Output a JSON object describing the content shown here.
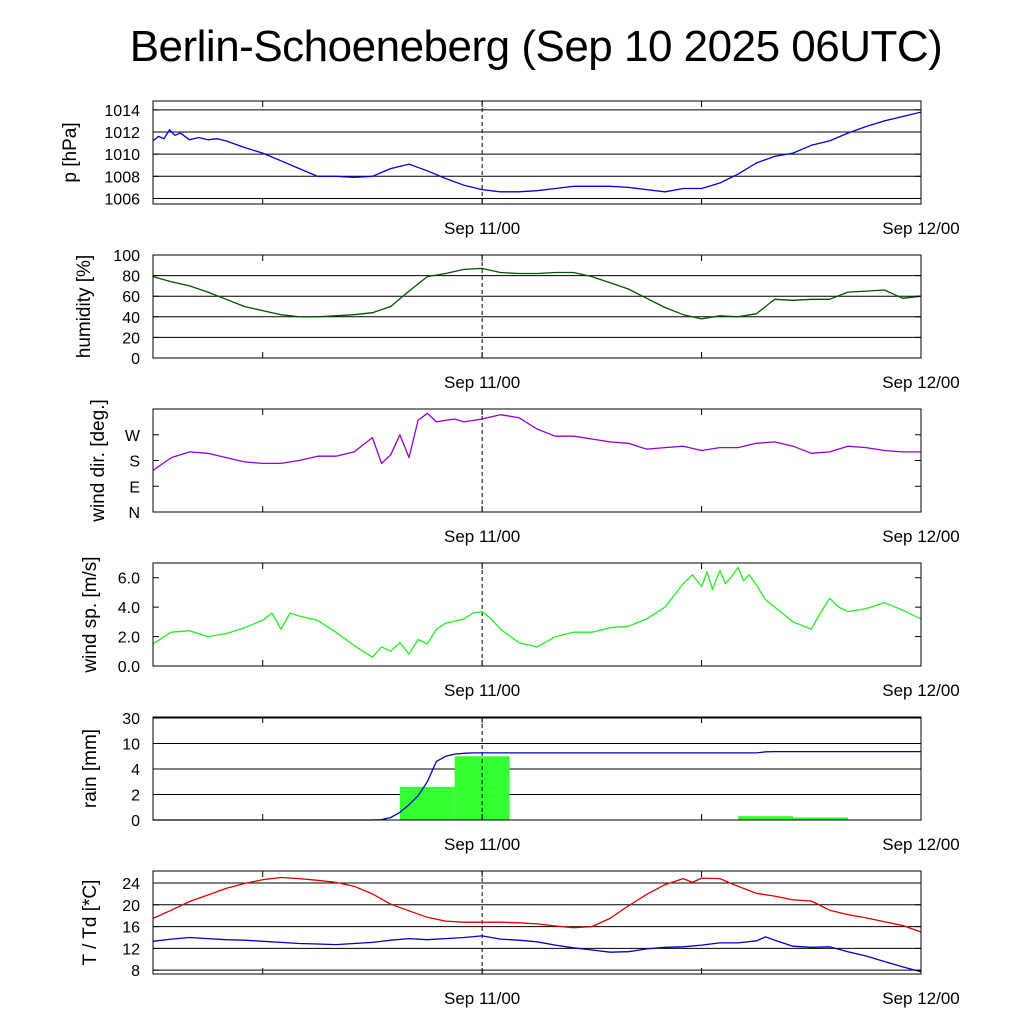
{
  "title": "Berlin-Schoeneberg (Sep 10 2025 06UTC)",
  "x_axis": {
    "start": "Sep 10 06UTC",
    "end": "Sep 12 00UTC",
    "span_hours": 42,
    "tick_labels": [
      {
        "hour": 18,
        "label": "Sep 11/00"
      },
      {
        "hour": 42,
        "label": "Sep 12/00"
      }
    ],
    "minor_ticks_hours": [
      6,
      18,
      30,
      42
    ],
    "dashed_line_hour": 18
  },
  "colors": {
    "pressure": "#0000dd",
    "humidity": "#005500",
    "wind_dir": "#9400d3",
    "wind_speed": "#22ee22",
    "rain_bars": "#33ff33",
    "rain_accum": "#0000cc",
    "temperature": "#dd0000",
    "dewpoint": "#0000cc"
  },
  "chart_data": [
    {
      "type": "line",
      "ylabel": "p [hPa]",
      "ylim": [
        1005.5,
        1014.8
      ],
      "yticks": [
        1006,
        1008,
        1010,
        1012,
        1014
      ],
      "grid": true,
      "series": [
        {
          "color_key": "pressure",
          "x": [
            0,
            0.3,
            0.6,
            0.9,
            1.2,
            1.5,
            2,
            2.5,
            3,
            3.5,
            4,
            5,
            6,
            7,
            8,
            9,
            10,
            11,
            12,
            13,
            14,
            15,
            16,
            17,
            18,
            19,
            20,
            21,
            22,
            23,
            24,
            25,
            26,
            27,
            28,
            29,
            30,
            31,
            32,
            33,
            34,
            35,
            36,
            37,
            38,
            39,
            40,
            41,
            42
          ],
          "y": [
            1011.2,
            1011.6,
            1011.4,
            1012.2,
            1011.7,
            1011.9,
            1011.3,
            1011.5,
            1011.3,
            1011.4,
            1011.2,
            1010.6,
            1010.1,
            1009.4,
            1008.7,
            1008.0,
            1008.0,
            1007.9,
            1008.0,
            1008.7,
            1009.1,
            1008.5,
            1007.8,
            1007.2,
            1006.8,
            1006.6,
            1006.6,
            1006.7,
            1006.9,
            1007.1,
            1007.1,
            1007.1,
            1007.0,
            1006.8,
            1006.6,
            1006.9,
            1006.9,
            1007.4,
            1008.2,
            1009.2,
            1009.8,
            1010.1,
            1010.8,
            1011.2,
            1011.9,
            1012.5,
            1013.0,
            1013.4,
            1013.8
          ]
        }
      ]
    },
    {
      "type": "line",
      "ylabel": "humidity [%]",
      "ylim": [
        0,
        100
      ],
      "yticks": [
        0,
        20,
        40,
        60,
        80,
        100
      ],
      "grid": true,
      "series": [
        {
          "color_key": "humidity",
          "x": [
            0,
            1,
            2,
            3,
            4,
            5,
            6,
            7,
            8,
            9,
            10,
            11,
            12,
            13,
            14,
            15,
            16,
            17,
            18,
            19,
            20,
            21,
            22,
            23,
            24,
            25,
            26,
            27,
            28,
            29,
            30,
            31,
            32,
            33,
            34,
            35,
            36,
            37,
            38,
            39,
            40,
            41,
            42
          ],
          "y": [
            79,
            74,
            70,
            64,
            57,
            50,
            46,
            42,
            40,
            40,
            41,
            42,
            44,
            50,
            65,
            79,
            82,
            86,
            87,
            83,
            82,
            82,
            83,
            83,
            79,
            73,
            67,
            58,
            49,
            42,
            38,
            41,
            40,
            43,
            57,
            56,
            57,
            57,
            64,
            65,
            66,
            58,
            60
          ]
        }
      ]
    },
    {
      "type": "line",
      "ylabel": "wind dir. [deg.]",
      "ylim": [
        0,
        360
      ],
      "yticks": [
        0,
        90,
        180,
        270
      ],
      "ytick_labels": [
        "N",
        "E",
        "S",
        "W"
      ],
      "grid": false,
      "series": [
        {
          "color_key": "wind_dir",
          "x": [
            0,
            1,
            2,
            3,
            4,
            5,
            6,
            7,
            8,
            9,
            10,
            11,
            12,
            12.5,
            13,
            13.5,
            14,
            14.5,
            15,
            15.5,
            16,
            16.5,
            17,
            18,
            19,
            20,
            21,
            22,
            23,
            24,
            25,
            26,
            27,
            28,
            29,
            30,
            31,
            32,
            33,
            34,
            35,
            36,
            37,
            38,
            39,
            40,
            41,
            42
          ],
          "y": [
            145,
            190,
            210,
            205,
            190,
            175,
            170,
            170,
            180,
            195,
            195,
            210,
            260,
            170,
            200,
            270,
            190,
            320,
            345,
            315,
            320,
            325,
            315,
            325,
            340,
            330,
            290,
            265,
            265,
            255,
            245,
            240,
            220,
            225,
            230,
            215,
            225,
            225,
            240,
            245,
            230,
            205,
            210,
            230,
            225,
            215,
            210,
            210
          ]
        }
      ]
    },
    {
      "type": "line",
      "ylabel": "wind sp. [m/s]",
      "ylim": [
        0,
        7
      ],
      "yticks": [
        0.0,
        2.0,
        4.0,
        6.0
      ],
      "ytick_labels": [
        "0.0",
        "2.0",
        "4.0",
        "6.0"
      ],
      "grid": false,
      "series": [
        {
          "color_key": "wind_speed",
          "x": [
            0,
            1,
            2,
            3,
            4,
            5,
            6,
            6.5,
            7,
            7.5,
            8,
            9,
            10,
            11,
            11.5,
            12,
            12.5,
            13,
            13.5,
            14,
            14.5,
            15,
            15.5,
            16,
            17,
            17.5,
            18,
            18.5,
            19,
            20,
            21,
            22,
            23,
            24,
            25,
            26,
            27,
            28,
            29,
            29.5,
            30,
            30.3,
            30.6,
            31,
            31.3,
            31.6,
            32,
            32.3,
            32.6,
            33,
            33.5,
            34,
            35,
            36,
            36.5,
            37,
            37.5,
            38,
            39,
            40,
            41,
            42
          ],
          "y": [
            1.5,
            2.3,
            2.4,
            2.0,
            2.2,
            2.6,
            3.1,
            3.6,
            2.5,
            3.6,
            3.4,
            3.1,
            2.3,
            1.4,
            1.0,
            0.6,
            1.3,
            1.0,
            1.6,
            0.8,
            1.8,
            1.5,
            2.5,
            2.9,
            3.2,
            3.6,
            3.7,
            3.2,
            2.5,
            1.6,
            1.3,
            2.0,
            2.3,
            2.3,
            2.6,
            2.7,
            3.2,
            4.0,
            5.6,
            6.2,
            5.4,
            6.4,
            5.2,
            6.5,
            5.6,
            6.0,
            6.7,
            5.8,
            6.2,
            5.5,
            4.5,
            4.0,
            3.0,
            2.5,
            3.6,
            4.6,
            4.0,
            3.7,
            3.9,
            4.3,
            3.8,
            3.2
          ]
        }
      ]
    },
    {
      "type": "bar",
      "ylabel": "rain [mm]",
      "yticks": [
        0,
        2,
        4,
        10,
        30
      ],
      "ytick_labels": [
        "0",
        "2",
        "4",
        "10",
        "30"
      ],
      "grid": true,
      "bars": [
        {
          "x0": 13.5,
          "x1": 16.5,
          "value": 2.6
        },
        {
          "x0": 16.5,
          "x1": 19.5,
          "value": 7.0
        },
        {
          "x0": 32.0,
          "x1": 35.0,
          "value": 0.3
        },
        {
          "x0": 35.0,
          "x1": 38.0,
          "value": 0.2
        }
      ],
      "series": [
        {
          "name": "",
          "color_key": "rain_accum",
          "x": [
            0,
            12,
            12.5,
            13,
            13.5,
            14,
            14.5,
            15,
            15.5,
            16,
            16.5,
            17,
            17.5,
            18,
            20,
            25,
            30,
            33,
            33.5,
            34,
            35,
            40,
            42
          ],
          "y": [
            0,
            0,
            0.03,
            0.2,
            0.6,
            1.2,
            1.9,
            3.0,
            5.8,
            7.0,
            7.5,
            7.7,
            7.8,
            7.8,
            7.8,
            7.8,
            7.8,
            7.8,
            8.05,
            8.1,
            8.1,
            8.1,
            8.1
          ]
        }
      ]
    },
    {
      "type": "line",
      "ylabel": "T / Td [*C]",
      "ylim": [
        7.3,
        26.2
      ],
      "yticks": [
        8,
        12,
        16,
        20,
        24
      ],
      "grid": true,
      "series": [
        {
          "color_key": "temperature",
          "x": [
            0,
            1,
            2,
            3,
            4,
            5,
            6,
            7,
            8,
            9,
            10,
            11,
            12,
            13,
            14,
            15,
            16,
            17,
            18,
            19,
            20,
            21,
            22,
            23,
            24,
            25,
            26,
            27,
            28,
            29,
            29.5,
            30,
            31,
            32,
            33,
            34,
            35,
            36,
            37,
            38,
            39,
            40,
            41,
            42
          ],
          "y": [
            17.5,
            19.0,
            20.6,
            21.8,
            23.0,
            23.9,
            24.6,
            25.0,
            24.8,
            24.5,
            24.1,
            23.4,
            22.0,
            20.1,
            18.9,
            17.7,
            17.0,
            16.8,
            16.8,
            16.8,
            16.7,
            16.5,
            16.1,
            15.8,
            16.0,
            17.5,
            19.8,
            21.9,
            23.7,
            24.8,
            24.1,
            24.9,
            24.8,
            23.4,
            22.1,
            21.6,
            20.9,
            20.7,
            19.0,
            18.2,
            17.6,
            16.9,
            16.2,
            15.0
          ]
        },
        {
          "color_key": "dewpoint",
          "x": [
            0,
            1,
            2,
            3,
            4,
            5,
            6,
            7,
            8,
            9,
            10,
            11,
            12,
            13,
            14,
            15,
            16,
            17,
            18,
            19,
            20,
            21,
            22,
            23,
            24,
            25,
            26,
            27,
            28,
            29,
            30,
            31,
            32,
            33,
            33.5,
            34,
            35,
            36,
            37,
            38,
            39,
            40,
            41,
            42
          ],
          "y": [
            13.3,
            13.7,
            14.0,
            13.8,
            13.6,
            13.5,
            13.3,
            13.1,
            12.9,
            12.8,
            12.7,
            12.9,
            13.1,
            13.5,
            13.8,
            13.6,
            13.8,
            14.0,
            14.3,
            13.7,
            13.5,
            13.2,
            12.6,
            12.1,
            11.7,
            11.3,
            11.4,
            11.9,
            12.2,
            12.3,
            12.6,
            13.0,
            13.0,
            13.4,
            14.1,
            13.5,
            12.4,
            12.2,
            12.3,
            11.4,
            10.6,
            9.6,
            8.6,
            7.7
          ]
        }
      ]
    }
  ]
}
